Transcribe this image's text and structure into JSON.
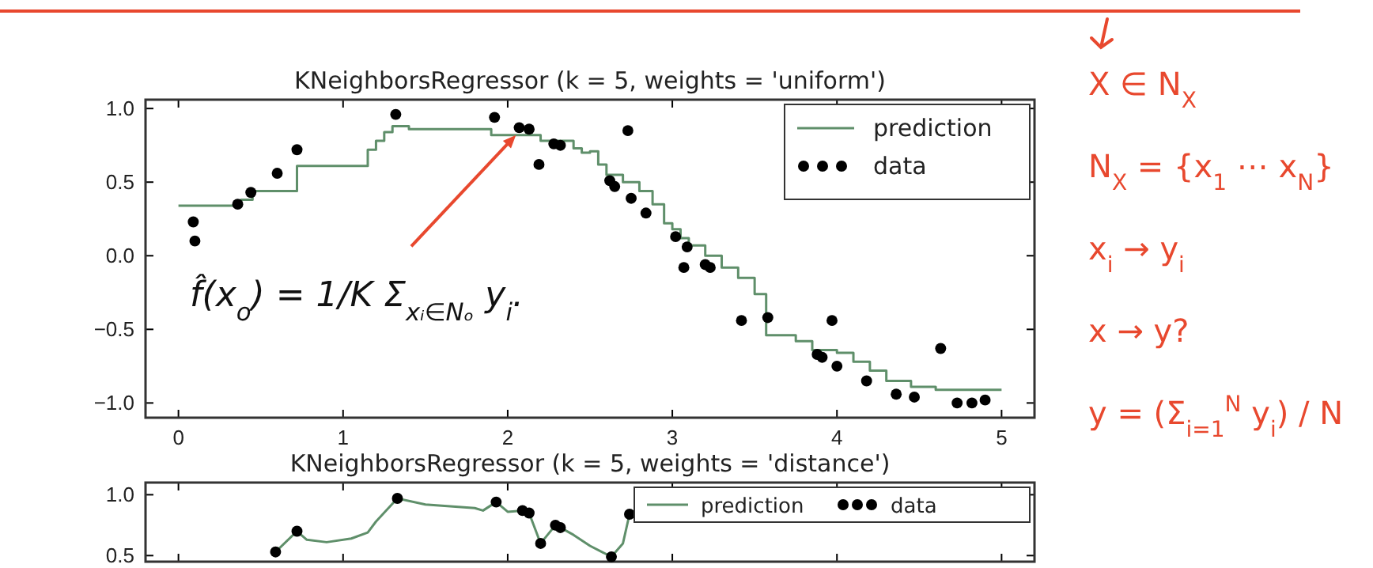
{
  "chart_data": [
    {
      "type": "scatter",
      "title": "KNeighborsRegressor (k = 5, weights = 'uniform')",
      "xlim": [
        -0.2,
        5.2
      ],
      "ylim": [
        -1.1,
        1.06
      ],
      "xticks": [
        0,
        1,
        2,
        3,
        4,
        5
      ],
      "yticks": [
        {
          "value": -1,
          "label": "−1.0"
        },
        {
          "value": -0.5,
          "label": "−0.5"
        },
        {
          "value": 0,
          "label": "0.0"
        },
        {
          "value": 0.5,
          "label": "0.5"
        },
        {
          "value": 1,
          "label": "1.0"
        }
      ],
      "legend": "top right",
      "grid": false,
      "series": [
        {
          "name": "prediction",
          "type": "step",
          "color": "#5f8f6a",
          "x": [
            0,
            0.38,
            0.45,
            0.72,
            1.15,
            1.2,
            1.25,
            1.3,
            1.4,
            1.5,
            1.9,
            2.2,
            2.3,
            2.4,
            2.45,
            2.5,
            2.55,
            2.6,
            2.7,
            2.8,
            2.88,
            2.95,
            3.0,
            3.05,
            3.1,
            3.2,
            3.3,
            3.4,
            3.5,
            3.57,
            3.75,
            3.85,
            4.0,
            4.1,
            4.2,
            4.3,
            4.45,
            4.6,
            5.0
          ],
          "values": [
            0.34,
            0.38,
            0.44,
            0.61,
            0.72,
            0.78,
            0.84,
            0.88,
            0.86,
            0.86,
            0.82,
            0.78,
            0.78,
            0.73,
            0.7,
            0.71,
            0.62,
            0.55,
            0.5,
            0.44,
            0.35,
            0.22,
            0.18,
            0.12,
            0.07,
            0,
            -0.08,
            -0.15,
            -0.26,
            -0.54,
            -0.58,
            -0.64,
            -0.66,
            -0.72,
            -0.78,
            -0.85,
            -0.89,
            -0.91,
            -0.91
          ]
        },
        {
          "name": "data",
          "marker": "circle",
          "color": "#000000",
          "x": [
            0.09,
            0.1,
            0.36,
            0.44,
            0.6,
            0.72,
            1.32,
            1.92,
            2.07,
            2.13,
            2.19,
            2.28,
            2.32,
            2.62,
            2.65,
            2.73,
            2.75,
            2.84,
            3.02,
            3.07,
            3.09,
            3.2,
            3.23,
            3.42,
            3.58,
            3.88,
            3.91,
            3.97,
            4.0,
            4.18,
            4.36,
            4.47,
            4.63,
            4.73,
            4.82,
            4.9
          ],
          "values": [
            0.23,
            0.1,
            0.35,
            0.43,
            0.56,
            0.72,
            0.96,
            0.94,
            0.87,
            0.86,
            0.62,
            0.76,
            0.75,
            0.51,
            0.47,
            0.85,
            0.39,
            0.29,
            0.13,
            -0.08,
            0.06,
            -0.06,
            -0.08,
            -0.44,
            -0.42,
            -0.67,
            -0.69,
            -0.44,
            -0.75,
            -0.85,
            -0.94,
            -0.96,
            -0.63,
            -1.0,
            -1.0,
            -0.98
          ]
        }
      ],
      "annotations": [
        {
          "text": "f̂(x$_{o}$) = 1/K Σ$_{xᵢ∈Nₒ}$ y$_{i}$.",
          "x": 2.05,
          "y": 0.82
        },
        "X ∈ N$_{X}$",
        "N$_{X}$ = {x$_{1}$ ⋯ x$_{N}$}",
        "x$_{i}$ → y$_{i}$",
        "x → y?",
        "y = (Σ$_{i=1}$$^{N}$ y$_{i}$) / N"
      ]
    },
    {
      "type": "scatter",
      "title": "KNeighborsRegressor (k = 5, weights = 'distance')",
      "xlim": [
        -0.2,
        5.2
      ],
      "ylim": [
        0.45,
        1.1
      ],
      "xticks": [
        0,
        1,
        2,
        3,
        4,
        5
      ],
      "yticks": [
        0.5,
        {
          "value": 1,
          "label": "1.0"
        }
      ],
      "tick_labels": "y",
      "legend": "top right",
      "grid": false,
      "series": [
        {
          "name": "prediction",
          "type": "line",
          "color": "#5f8f6a",
          "x": [
            0.59,
            0.72,
            0.78,
            0.9,
            1.05,
            1.15,
            1.2,
            1.33,
            1.5,
            1.8,
            1.85,
            1.93,
            2.0,
            2.09,
            2.13,
            2.2,
            2.29,
            2.32,
            2.4,
            2.5,
            2.63,
            2.7,
            2.74
          ],
          "values": [
            0.53,
            0.7,
            0.63,
            0.61,
            0.64,
            0.69,
            0.78,
            0.97,
            0.92,
            0.89,
            0.87,
            0.94,
            0.86,
            0.87,
            0.85,
            0.6,
            0.75,
            0.73,
            0.67,
            0.58,
            0.49,
            0.6,
            0.84
          ]
        },
        {
          "name": "data",
          "marker": "circle",
          "color": "#000000",
          "x": [
            0.59,
            0.72,
            1.33,
            1.93,
            2.09,
            2.13,
            2.2,
            2.29,
            2.32,
            2.63,
            2.74
          ],
          "values": [
            0.53,
            0.7,
            0.97,
            0.94,
            0.87,
            0.85,
            0.6,
            0.75,
            0.73,
            0.49,
            0.84
          ]
        }
      ]
    }
  ]
}
